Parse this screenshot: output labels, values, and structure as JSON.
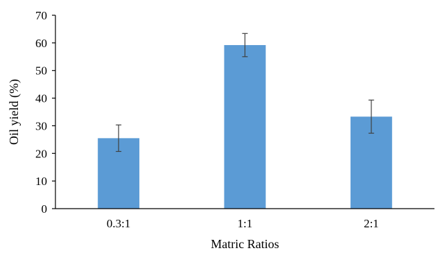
{
  "chart_data": {
    "type": "bar",
    "categories": [
      "0.3:1",
      "1:1",
      "2:1"
    ],
    "values": [
      25.5,
      59.2,
      33.3
    ],
    "errors": [
      4.8,
      4.2,
      6.0
    ],
    "xlabel": "Matric Ratios",
    "ylabel": "Oil yield (%)",
    "ylim": [
      0,
      70
    ],
    "yticks": [
      "0",
      "10",
      "20",
      "30",
      "40",
      "50",
      "60",
      "70"
    ],
    "grid": false,
    "legend": "none",
    "colors": {
      "bar": "#5B9BD5",
      "error_bar": "#404040",
      "axis": "#000000"
    }
  }
}
